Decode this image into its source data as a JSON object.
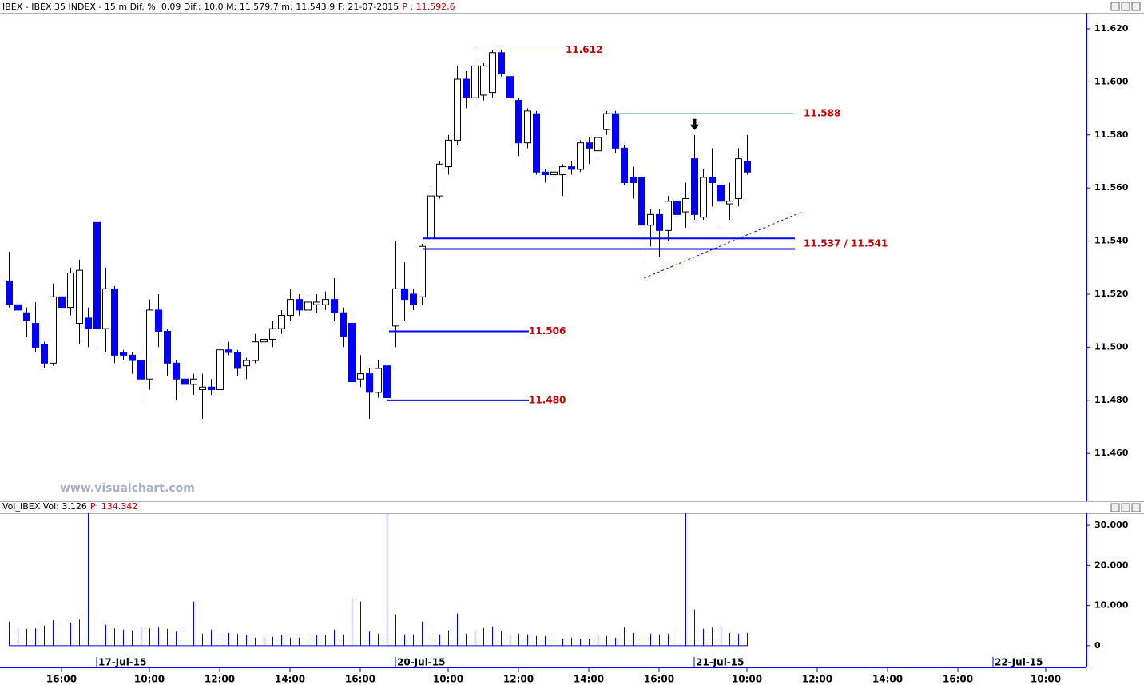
{
  "watermark": "www.visualchart.com",
  "chart_data": [
    {
      "type": "candlestick",
      "title": "IBEX - IBEX 35 INDEX -  15 m  Dif. %: 0,09  Dif.: 10,0  M: 11.579,7  m: 11.543,9  F: 21-07-2015",
      "last_label": "P : 11.592,6",
      "open": [
        11525,
        11516,
        11513,
        11509,
        11501,
        11494,
        11519,
        11515,
        11509,
        11511,
        11547,
        11507,
        11522,
        11498,
        11497,
        11495,
        11488,
        11514,
        11506,
        11494,
        11488,
        11486,
        11484,
        11485,
        11484,
        11499,
        11498,
        11493,
        11495,
        11502,
        11503,
        11507,
        11512,
        11518,
        11514,
        11516,
        11516,
        11518,
        11513,
        11509,
        11488,
        11490,
        11483,
        11493,
        11508,
        11522,
        11520,
        11519,
        11541,
        11557,
        11568,
        11578,
        11601,
        11594,
        11595,
        11596,
        11611,
        11602,
        11593,
        11577,
        11588,
        11566,
        11565,
        11565,
        11568,
        11567,
        11577,
        11574,
        11582,
        11588,
        11575,
        11564,
        11564,
        11546,
        11550,
        11544,
        11555,
        11551,
        11571,
        11549,
        11564,
        11561,
        11554,
        11556,
        11570,
        null,
        null,
        null,
        null,
        null,
        null,
        null,
        null,
        null,
        null,
        null,
        null,
        null,
        null,
        null,
        null,
        null,
        null,
        null,
        null,
        null,
        null,
        null,
        null,
        null,
        null,
        null,
        null,
        null,
        null,
        null,
        null,
        null,
        null,
        null,
        null
      ],
      "high": [
        11536,
        11517,
        11515,
        11517,
        11502,
        11524,
        11522,
        11530,
        11533,
        11515,
        11547,
        11530,
        11523,
        11499,
        11498,
        11500,
        11518,
        11520,
        11507,
        11495,
        11490,
        11490,
        11490,
        11488,
        11503,
        11502,
        11499,
        11496,
        11505,
        11507,
        11510,
        11514,
        11522,
        11520,
        11519,
        11520,
        11521,
        11526,
        11515,
        11512,
        11497,
        11492,
        11495,
        11494,
        11540,
        11532,
        11522,
        11539,
        11560,
        11570,
        11580,
        11606,
        11604,
        11608,
        11607,
        11612,
        11612,
        11603,
        11594,
        11590,
        11589,
        11567,
        11567,
        11569,
        11570,
        11578,
        11579,
        11580,
        11589,
        11589,
        11576,
        11568,
        11565,
        11552,
        11552,
        11557,
        11556,
        11562,
        11580,
        11567,
        11575,
        11562,
        11562,
        11575,
        11580,
        null,
        null,
        null,
        null,
        null,
        null,
        null,
        null,
        null,
        null,
        null,
        null,
        null,
        null,
        null,
        null,
        null,
        null,
        null,
        null,
        null,
        null,
        null,
        null,
        null,
        null,
        null,
        null,
        null,
        null,
        null,
        null,
        null,
        null,
        null,
        null
      ],
      "low": [
        11515,
        11510,
        11504,
        11498,
        11492,
        11493,
        11512,
        11512,
        11501,
        11500,
        11500,
        11498,
        11494,
        11495,
        11490,
        11481,
        11484,
        11500,
        11489,
        11480,
        11483,
        11482,
        11473,
        11482,
        11483,
        11497,
        11489,
        11488,
        11494,
        11499,
        11500,
        11505,
        11510,
        11512,
        11512,
        11513,
        11514,
        11510,
        11500,
        11484,
        11485,
        11473,
        11481,
        11480,
        11500,
        11510,
        11514,
        11516,
        11540,
        11556,
        11565,
        11576,
        11590,
        11590,
        11593,
        11594,
        11602,
        11593,
        11572,
        11575,
        11565,
        11562,
        11560,
        11557,
        11565,
        11566,
        11569,
        11572,
        11580,
        11573,
        11561,
        11556,
        11532,
        11538,
        11534,
        11540,
        11542,
        11545,
        11548,
        11548,
        11553,
        11545,
        11548,
        11553,
        11565,
        null,
        null,
        null,
        null,
        null,
        null,
        null,
        null,
        null,
        null,
        null,
        null,
        null,
        null,
        null,
        null,
        null,
        null,
        null,
        null,
        null,
        null,
        null,
        null,
        null,
        null,
        null,
        null,
        null,
        null,
        null,
        null,
        null,
        null,
        null,
        null
      ],
      "close": [
        11516,
        11514,
        11510,
        11500,
        11494,
        11519,
        11515,
        11528,
        11529,
        11507,
        11507,
        11522,
        11497,
        11497,
        11495,
        11488,
        11514,
        11506,
        11494,
        11488,
        11486,
        11488,
        11485,
        11484,
        11499,
        11498,
        11492,
        11495,
        11502,
        11503,
        11507,
        11512,
        11518,
        11514,
        11517,
        11517,
        11518,
        11513,
        11504,
        11487,
        11490,
        11483,
        11492,
        11481,
        11522,
        11518,
        11516,
        11538,
        11557,
        11569,
        11578,
        11601,
        11594,
        11606,
        11606,
        11611,
        11603,
        11594,
        11577,
        11589,
        11566,
        11565,
        11566,
        11568,
        11567,
        11577,
        11575,
        11579,
        11588,
        11575,
        11562,
        11562,
        11546,
        11550,
        11544,
        11555,
        11550,
        11556,
        11550,
        11564,
        11562,
        11555,
        11555,
        11571,
        11566,
        null,
        null,
        null,
        null,
        null,
        null,
        null,
        null,
        null,
        null,
        null,
        null,
        null,
        null,
        null,
        null,
        null,
        null,
        null,
        null,
        null,
        null,
        null,
        null,
        null,
        null,
        null,
        null,
        null,
        null,
        null,
        null,
        null,
        null,
        null,
        null
      ],
      "up_color": "#ffffff",
      "down_color": "#0000ff",
      "ylim": [
        11442,
        11626
      ],
      "yticks": [
        {
          "value": 11460,
          "label": "11.460"
        },
        {
          "value": 11480,
          "label": "11.480"
        },
        {
          "value": 11500,
          "label": "11.500"
        },
        {
          "value": 11520,
          "label": "11.520"
        },
        {
          "value": 11540,
          "label": "11.540"
        },
        {
          "value": 11560,
          "label": "11.560"
        },
        {
          "value": 11580,
          "label": "11.580"
        },
        {
          "value": 11600,
          "label": "11.600"
        },
        {
          "value": 11620,
          "label": "11.620"
        }
      ],
      "annotations": [
        {
          "label": "11.612",
          "values": [
            11612
          ]
        },
        {
          "label": "11.588",
          "values": [
            11588
          ]
        },
        {
          "label": "11.537 / 11.541",
          "values": [
            11537,
            11541
          ]
        },
        {
          "label": "11.506",
          "values": [
            11506
          ]
        },
        {
          "label": "11.480",
          "values": [
            11480
          ]
        }
      ],
      "trendline": [
        11526,
        11551
      ]
    },
    {
      "type": "bar",
      "title": "Vol_IBEX Vol: 3.126",
      "last_label": "P: 134.342",
      "color": "#0000ff",
      "values": [
        6000,
        4500,
        4200,
        4300,
        5000,
        6300,
        5800,
        5800,
        6500,
        33000,
        9500,
        5200,
        4300,
        4000,
        3800,
        4600,
        4300,
        4500,
        4200,
        3500,
        3600,
        11000,
        3000,
        4000,
        3000,
        3200,
        3000,
        2600,
        2000,
        2000,
        2200,
        2600,
        2000,
        2000,
        2200,
        2600,
        2600,
        4000,
        2800,
        11500,
        11000,
        3500,
        3000,
        33000,
        7800,
        2800,
        2800,
        6000,
        3000,
        2800,
        3800,
        8000,
        3000,
        3800,
        4400,
        4800,
        3600,
        2800,
        3000,
        2800,
        2400,
        2400,
        1800,
        1600,
        2000,
        1600,
        1600,
        2600,
        2400,
        2000,
        4500,
        3200,
        2800,
        3000,
        2800,
        3000,
        4200,
        33000,
        9000,
        4200,
        4500,
        4800,
        3200,
        3000,
        3200,
        null,
        null,
        null,
        null,
        null,
        null,
        null,
        null,
        null,
        null,
        null,
        null,
        null,
        null,
        null,
        null,
        null,
        null,
        null,
        null,
        null,
        null,
        null,
        null,
        null,
        null,
        null,
        null,
        null,
        null,
        null,
        null,
        null,
        null,
        null,
        null
      ],
      "categories": [
        null,
        null,
        null,
        null,
        null,
        null,
        "16:00",
        null,
        null,
        null,
        null,
        null,
        null,
        null,
        null,
        null,
        "10:00",
        null,
        null,
        null,
        null,
        null,
        null,
        null,
        "12:00",
        null,
        null,
        null,
        null,
        null,
        null,
        null,
        "14:00",
        null,
        null,
        null,
        null,
        null,
        null,
        null,
        "16:00",
        null,
        null,
        null,
        null,
        null,
        null,
        null,
        null,
        null,
        "10:00",
        null,
        null,
        null,
        null,
        null,
        null,
        null,
        "12:00",
        null,
        null,
        null,
        null,
        null,
        null,
        null,
        "14:00",
        null,
        null,
        null,
        null,
        null,
        null,
        null,
        "16:00",
        null,
        null,
        null,
        null,
        null,
        null,
        null,
        null,
        null,
        "10:00",
        null,
        null,
        null,
        null,
        null,
        null,
        null,
        "12:00",
        null,
        null,
        null,
        null,
        null,
        null,
        null,
        "14:00",
        null,
        null,
        null,
        null,
        null,
        null,
        null,
        "16:00",
        null,
        null,
        null,
        null,
        null,
        null,
        null,
        null,
        null,
        "10:00",
        null,
        null
      ],
      "dates": [
        null,
        null,
        null,
        null,
        null,
        null,
        null,
        null,
        null,
        null,
        "17-Jul-15",
        null,
        null,
        null,
        null,
        null,
        null,
        null,
        null,
        null,
        null,
        null,
        null,
        null,
        null,
        null,
        null,
        null,
        null,
        null,
        null,
        null,
        null,
        null,
        null,
        null,
        null,
        null,
        null,
        null,
        null,
        null,
        null,
        null,
        "20-Jul-15",
        null,
        null,
        null,
        null,
        null,
        null,
        null,
        null,
        null,
        null,
        null,
        null,
        null,
        null,
        null,
        null,
        null,
        null,
        null,
        null,
        null,
        null,
        null,
        null,
        null,
        null,
        null,
        null,
        null,
        null,
        null,
        null,
        null,
        "21-Jul-15",
        null,
        null,
        null,
        null,
        null,
        null,
        null,
        null,
        null,
        null,
        null,
        null,
        null,
        null,
        null,
        null,
        null,
        null,
        null,
        null,
        null,
        null,
        null,
        null,
        null,
        null,
        null,
        null,
        null,
        null,
        null,
        null,
        null,
        "22-Jul-15",
        null,
        null,
        null,
        null,
        null,
        null,
        null,
        null
      ],
      "ylim": [
        -5400,
        33000
      ],
      "yticks": [
        0,
        {
          "value": 10000,
          "label": "10.000"
        },
        {
          "value": 20000,
          "label": "20.000"
        },
        {
          "value": 30000,
          "label": "30.000"
        }
      ]
    }
  ]
}
